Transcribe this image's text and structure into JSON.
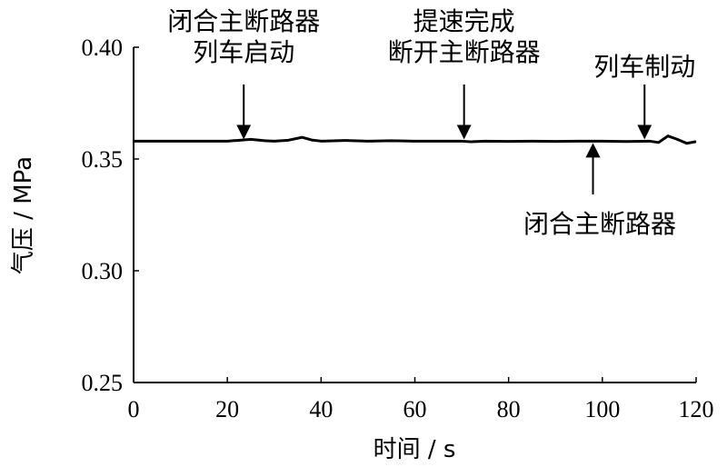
{
  "chart_data": {
    "type": "line",
    "xlabel": "时间 / s",
    "ylabel": "气压 / MPa",
    "xlim": [
      0,
      120
    ],
    "ylim": [
      0.25,
      0.4
    ],
    "xticks": [
      "0",
      "20",
      "40",
      "60",
      "80",
      "100",
      "120"
    ],
    "yticks": [
      "0.25",
      "0.30",
      "0.35",
      "0.40"
    ],
    "grid": false,
    "series": [
      {
        "color": "#000000",
        "x": [
          0,
          5,
          10,
          15,
          20,
          22,
          25,
          28,
          30,
          33,
          36,
          38,
          40,
          45,
          50,
          55,
          60,
          65,
          70,
          72,
          75,
          80,
          85,
          90,
          95,
          100,
          105,
          110,
          112,
          114,
          116,
          118,
          120
        ],
        "y": [
          0.358,
          0.358,
          0.358,
          0.358,
          0.358,
          0.3583,
          0.3588,
          0.3582,
          0.358,
          0.3584,
          0.3597,
          0.3585,
          0.358,
          0.3583,
          0.358,
          0.3582,
          0.358,
          0.358,
          0.358,
          0.3577,
          0.358,
          0.3579,
          0.358,
          0.3579,
          0.358,
          0.358,
          0.3578,
          0.358,
          0.3574,
          0.3603,
          0.3588,
          0.357,
          0.3578
        ]
      }
    ],
    "annotations": [
      {
        "lines": [
          "闭合主断路器",
          "列车启动"
        ],
        "x": 23.5,
        "arrow": "down"
      },
      {
        "lines": [
          "提速完成",
          "断开主断路器"
        ],
        "x": 70.5,
        "arrow": "down"
      },
      {
        "lines": [
          "列车制动"
        ],
        "x": 109,
        "arrow": "down"
      },
      {
        "lines": [
          "闭合主断路器"
        ],
        "x": 98,
        "arrow": "up"
      }
    ]
  }
}
